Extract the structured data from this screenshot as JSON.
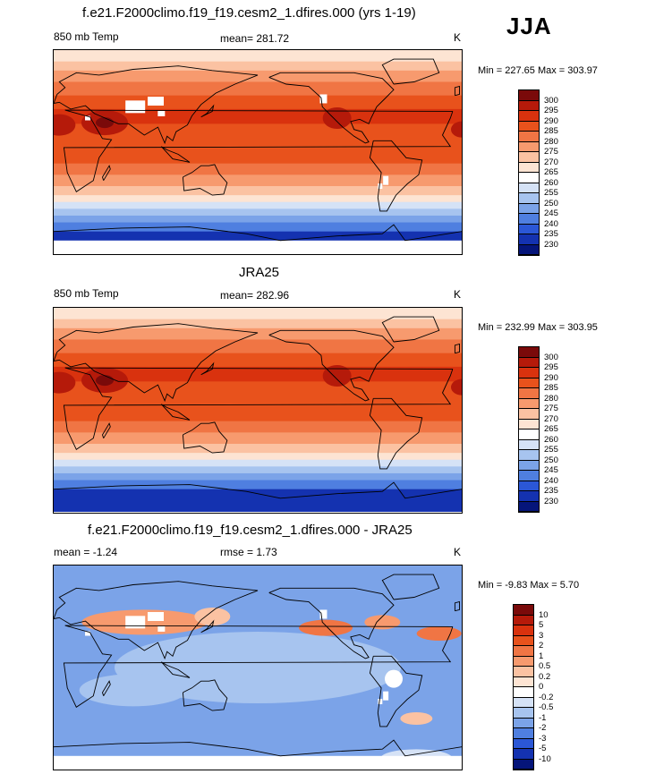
{
  "season": "JJA",
  "panels": [
    {
      "title": "f.e21.F2000climo.f19_f19.cesm2_1.dfires.000 (yrs 1-19)",
      "left_label": "850 mb Temp",
      "center_label": "mean= 281.72",
      "units": "K",
      "minmax": "Min = 227.65 Max = 303.97",
      "colorbar": {
        "labels": [
          "300",
          "295",
          "290",
          "285",
          "280",
          "275",
          "270",
          "265",
          "260",
          "255",
          "250",
          "245",
          "240",
          "235",
          "230"
        ],
        "colors": [
          "#7a0a0a",
          "#b51a0a",
          "#d9320e",
          "#e8521c",
          "#f07544",
          "#f79a6e",
          "#fbc2a2",
          "#fde4d3",
          "#ffffff",
          "#d5e2f6",
          "#a7c4ef",
          "#7ba3e8",
          "#4f7fe0",
          "#2b57d6",
          "#1432b0",
          "#05157a"
        ]
      },
      "map": {
        "style": "abs",
        "missing_patches": true
      }
    },
    {
      "title": "JRA25",
      "left_label": "850 mb Temp",
      "center_label": "mean= 282.96",
      "units": "K",
      "minmax": "Min = 232.99 Max = 303.95",
      "colorbar": {
        "labels": [
          "300",
          "295",
          "290",
          "285",
          "280",
          "275",
          "270",
          "265",
          "260",
          "255",
          "250",
          "245",
          "240",
          "235",
          "230"
        ],
        "colors": [
          "#7a0a0a",
          "#b51a0a",
          "#d9320e",
          "#e8521c",
          "#f07544",
          "#f79a6e",
          "#fbc2a2",
          "#fde4d3",
          "#ffffff",
          "#d5e2f6",
          "#a7c4ef",
          "#7ba3e8",
          "#4f7fe0",
          "#2b57d6",
          "#1432b0",
          "#05157a"
        ]
      },
      "map": {
        "style": "abs",
        "missing_patches": false
      }
    },
    {
      "title": "f.e21.F2000climo.f19_f19.cesm2_1.dfires.000 - JRA25",
      "left_label": "mean =  -1.24",
      "center_label": "rmse =   1.73",
      "units": "K",
      "minmax": "Min =  -9.83 Max =   5.70",
      "colorbar": {
        "labels": [
          "10",
          "5",
          "3",
          "2",
          "1",
          "0.5",
          "0.2",
          "0",
          "-0.2",
          "-0.5",
          "-1",
          "-2",
          "-3",
          "-5",
          "-10"
        ],
        "colors": [
          "#7a0a0a",
          "#b51a0a",
          "#d9320e",
          "#e8521c",
          "#f07544",
          "#f79a6e",
          "#fbc2a2",
          "#fde4d3",
          "#ffffff",
          "#d5e2f6",
          "#a7c4ef",
          "#7ba3e8",
          "#4f7fe0",
          "#2b57d6",
          "#1432b0",
          "#05157a"
        ]
      },
      "map": {
        "style": "diff",
        "missing_patches": true
      }
    }
  ]
}
